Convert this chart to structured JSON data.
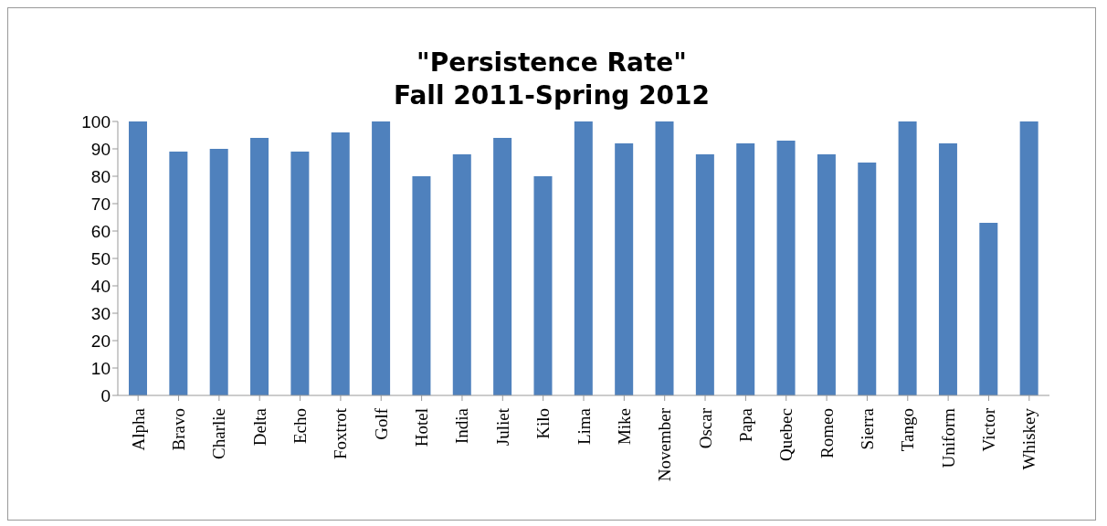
{
  "chart_data": {
    "type": "bar",
    "title": "\"Persistence Rate\"",
    "subtitle": "Fall 2011-Spring 2012",
    "categories": [
      "Alpha",
      "Bravo",
      "Charlie",
      "Delta",
      "Echo",
      "Foxtrot",
      "Golf",
      "Hotel",
      "India",
      "Juliet",
      "Kilo",
      "Lima",
      "Mike",
      "November",
      "Oscar",
      "Papa",
      "Quebec",
      "Romeo",
      "Sierra",
      "Tango",
      "Uniform",
      "Victor",
      "Whiskey"
    ],
    "values": [
      100,
      89,
      90,
      94,
      89,
      96,
      100,
      80,
      88,
      94,
      80,
      100,
      92,
      100,
      88,
      92,
      93,
      88,
      85,
      100,
      92,
      63,
      100
    ],
    "color": "#4f81bd",
    "ylim": [
      0,
      100
    ],
    "yticks": [
      0,
      10,
      20,
      30,
      40,
      50,
      60,
      70,
      80,
      90,
      100
    ],
    "grid": false,
    "legend": false
  }
}
